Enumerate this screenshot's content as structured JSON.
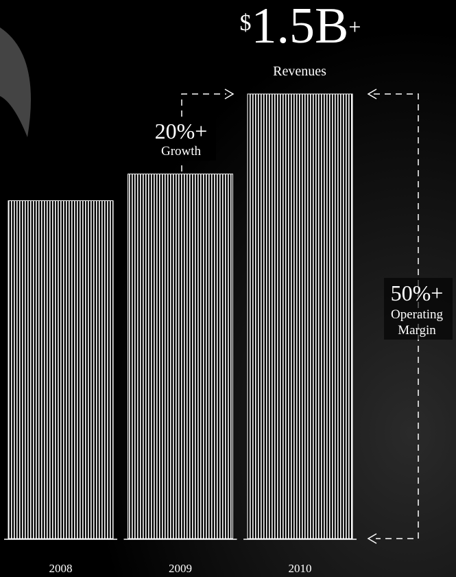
{
  "chart_data": {
    "type": "bar",
    "categories": [
      "2008",
      "2009",
      "2010"
    ],
    "values": [
      1.14,
      1.23,
      1.5
    ],
    "ylim": [
      0,
      1.5
    ],
    "color": "#ffffff",
    "annotations": {
      "headline": {
        "currency": "$",
        "amount": "1.5B",
        "suffix": "+"
      },
      "headline_label": "Revenues",
      "growth": {
        "value": "20%+",
        "label": "Growth"
      },
      "margin": {
        "value": "50%+",
        "label_lines": [
          "Operating",
          "Margin"
        ]
      }
    }
  }
}
